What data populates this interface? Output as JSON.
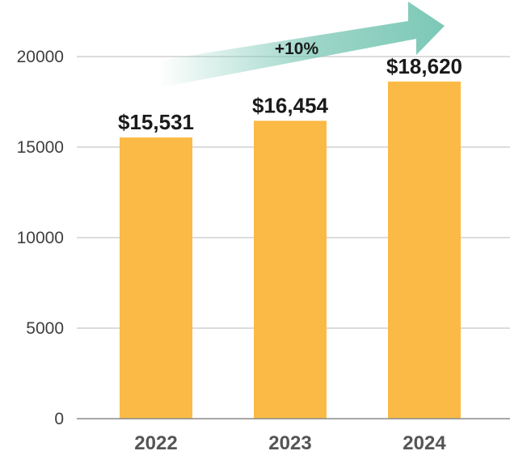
{
  "chart_data": {
    "type": "bar",
    "title": "",
    "xlabel": "",
    "ylabel": "",
    "categories": [
      "2022",
      "2023",
      "2024"
    ],
    "values": [
      15531,
      16454,
      18620
    ],
    "value_labels": [
      "$15,531",
      "$16,454",
      "$18,620"
    ],
    "ylim": [
      0,
      20000
    ],
    "yticks": [
      0,
      5000,
      10000,
      15000,
      20000
    ],
    "grid": true,
    "annotation": {
      "text": "+10%",
      "type": "growth-arrow"
    }
  },
  "colors": {
    "bar": "#FBBA45",
    "grid": "#c8c8c8",
    "axis": "#8a8a8a",
    "arrow": "#7cc8b6",
    "arrow_fade": "#ffffff"
  }
}
